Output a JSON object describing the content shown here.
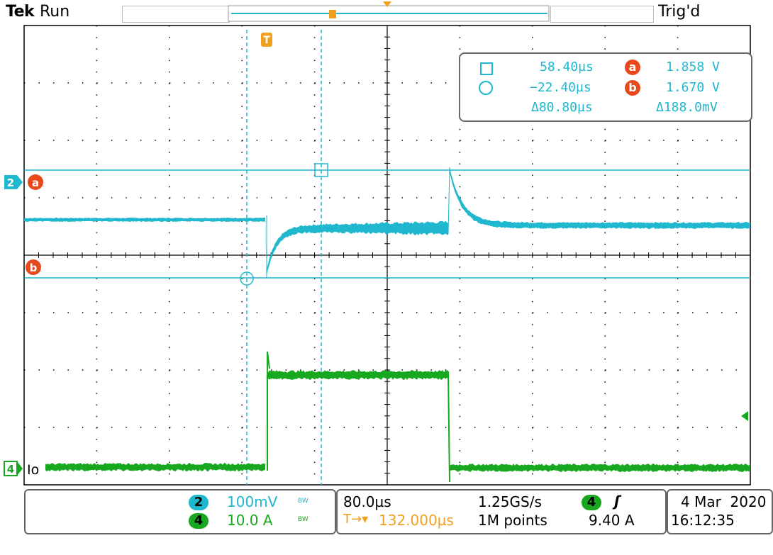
{
  "header": {
    "brand": "Tek",
    "run_state": "Run",
    "trigger_state": "Trig'd",
    "trigger_marker": "T"
  },
  "cursor_readout": {
    "cursor1_time": "58.40µs",
    "cursor2_time": "−22.40µs",
    "delta_time": "Δ80.80µs",
    "cursor_a_label": "a",
    "cursor_b_label": "b",
    "cursor_a_value": "1.858 V",
    "cursor_b_value": "1.670 V",
    "delta_volts": "Δ188.0mV"
  },
  "channels": {
    "ch2": {
      "number": "2",
      "scale": "100mV",
      "bw": "BW",
      "color": "#1fb8cf",
      "label": "a"
    },
    "ch4": {
      "number": "4",
      "scale": "10.0 A",
      "bw": "BW",
      "color": "#18a81f",
      "label": "Io"
    },
    "cursor_b_label": "b"
  },
  "timebase": {
    "scale": "80.0µs",
    "sample_rate": "1.25GS/s",
    "position": "132.000µs",
    "record_length": "1M points",
    "trigger_channel": "4",
    "trigger_slope": "rising",
    "trigger_level": "9.40 A"
  },
  "datetime": {
    "date": "4 Mar  2020",
    "time": "16:12:35"
  },
  "colors": {
    "ch2": "#1fb8cf",
    "ch4": "#18a81f",
    "cursor_badge": "#e8491c",
    "trigger": "#f0a020",
    "grid": "#000000"
  }
}
